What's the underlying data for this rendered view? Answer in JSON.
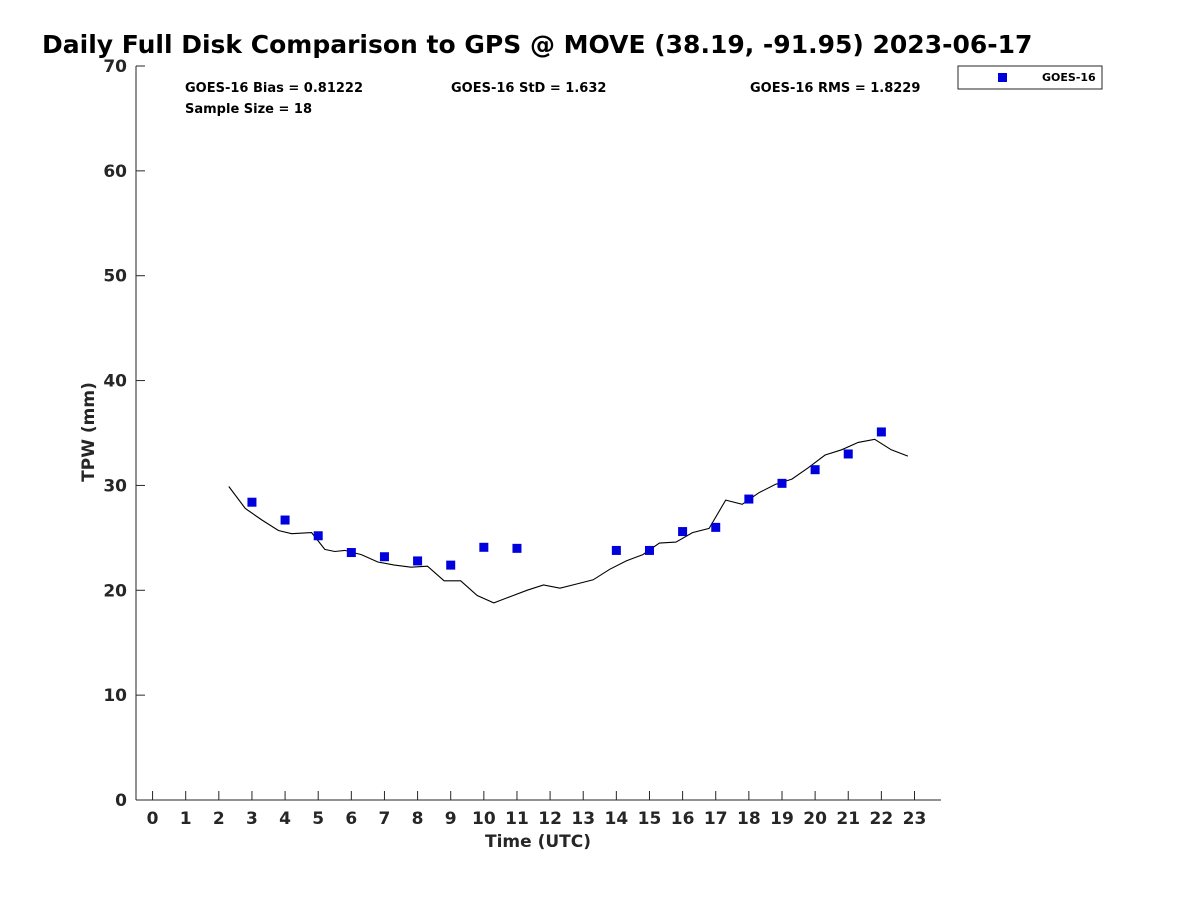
{
  "chart_data": {
    "type": "scatter",
    "title": "Daily Full Disk Comparison to GPS @ MOVE (38.19, -91.95) 2023-06-17",
    "xlabel": "Time (UTC)",
    "ylabel": "TPW (mm)",
    "xlim": [
      -0.5,
      23.8
    ],
    "ylim": [
      0,
      70
    ],
    "xticks": [
      "0",
      "1",
      "2",
      "3",
      "4",
      "5",
      "6",
      "7",
      "8",
      "9",
      "10",
      "11",
      "12",
      "13",
      "14",
      "15",
      "16",
      "17",
      "18",
      "19",
      "20",
      "21",
      "22",
      "23"
    ],
    "yticks": [
      "0",
      "10",
      "20",
      "30",
      "40",
      "50",
      "60",
      "70"
    ],
    "grid": false,
    "legend_position": "top-right outside",
    "stats": {
      "bias": "GOES-16 Bias = 0.81222",
      "std": "GOES-16 StD = 1.632",
      "rms": "GOES-16 RMS = 1.8229",
      "sample_size": "Sample Size = 18"
    },
    "series": [
      {
        "name": "GOES-16",
        "marker": "square",
        "color": "#0000dd",
        "x": [
          3,
          4,
          5,
          6,
          7,
          8,
          9,
          10,
          11,
          14,
          15,
          16,
          17,
          18,
          19,
          20,
          21,
          22
        ],
        "y": [
          28.4,
          26.7,
          25.2,
          23.6,
          23.2,
          22.8,
          22.4,
          24.1,
          24.0,
          23.8,
          23.8,
          25.6,
          26.0,
          28.7,
          30.2,
          31.5,
          33.0,
          35.1
        ]
      },
      {
        "marker": "line",
        "color": "#000000",
        "x": [
          2.3,
          2.8,
          3.3,
          3.8,
          4.2,
          4.8,
          5.2,
          5.5,
          5.8,
          6.3,
          6.8,
          7.3,
          7.8,
          8.3,
          8.8,
          9.3,
          9.8,
          10.3,
          10.8,
          11.3,
          11.8,
          12.3,
          12.8,
          13.3,
          13.8,
          14.3,
          14.8,
          15.3,
          15.8,
          16.3,
          16.8,
          17.3,
          17.8,
          18.3,
          18.8,
          19.3,
          19.8,
          20.3,
          20.8,
          21.3,
          21.8,
          22.3,
          22.8
        ],
        "y": [
          29.9,
          27.8,
          26.7,
          25.7,
          25.4,
          25.5,
          23.9,
          23.7,
          23.8,
          23.4,
          22.7,
          22.4,
          22.2,
          22.3,
          20.9,
          20.9,
          19.5,
          18.8,
          19.4,
          20.0,
          20.5,
          20.2,
          20.6,
          21.0,
          22.0,
          22.8,
          23.4,
          24.5,
          24.6,
          25.5,
          25.9,
          28.6,
          28.2,
          29.3,
          30.1,
          30.6,
          31.7,
          32.9,
          33.4,
          34.1,
          34.4,
          33.4,
          32.8
        ]
      }
    ]
  }
}
